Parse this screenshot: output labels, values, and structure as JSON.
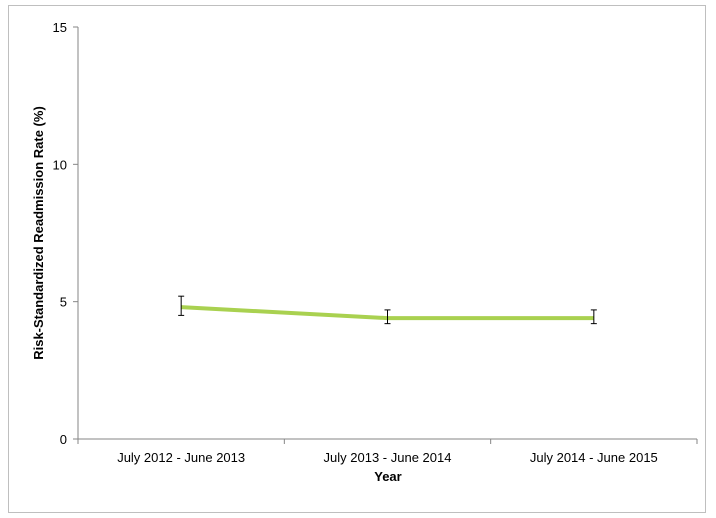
{
  "chart_data": {
    "type": "line",
    "title": "",
    "xlabel": "Year",
    "ylabel": "Risk-Standardized Readmission Rate (%)",
    "categories": [
      "July 2012 - June 2013",
      "July 2013 - June 2014",
      "July 2014 - June 2015"
    ],
    "series": [
      {
        "values": [
          4.8,
          4.4,
          4.4
        ],
        "error_low": [
          4.5,
          4.2,
          4.2
        ],
        "error_high": [
          5.2,
          4.7,
          4.7
        ],
        "color": "#a9d150"
      }
    ],
    "ylim": [
      0,
      15
    ],
    "yticks": [
      0,
      5,
      10,
      15
    ],
    "ytick_labels": [
      "0",
      "5",
      "10",
      "15"
    ],
    "grid": false,
    "legend": "none",
    "colors": {
      "axis": "#868686",
      "error_bar": "#000000",
      "frame": "#bfbfbf"
    }
  }
}
